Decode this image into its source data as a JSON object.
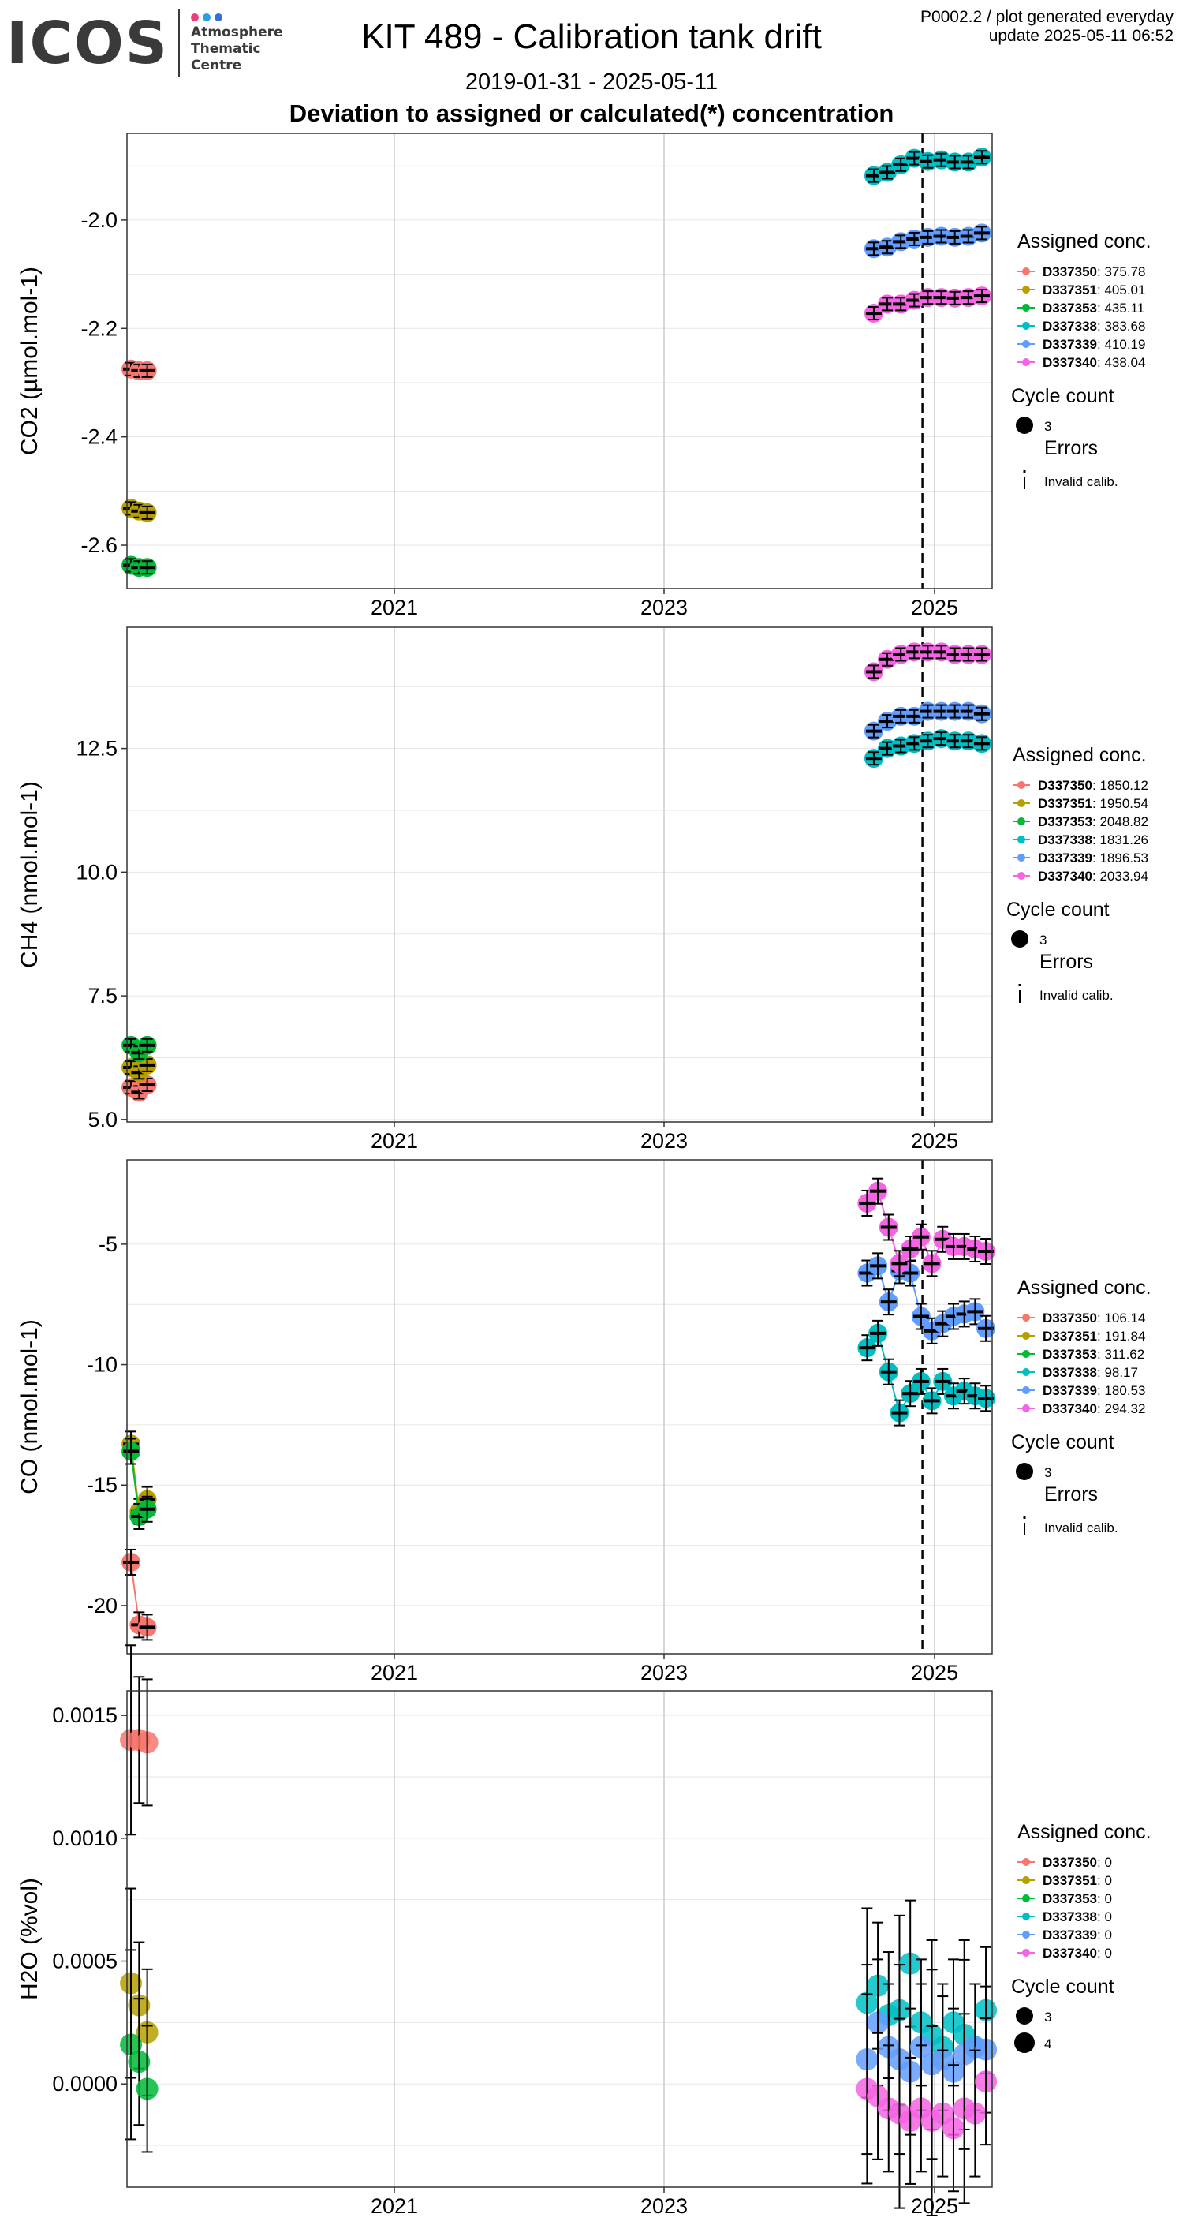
{
  "header": {
    "logo_text": "ICOS",
    "logo_lines": [
      "Atmosphere",
      "Thematic",
      "Centre"
    ],
    "logo_dot_colors": [
      "#e8407a",
      "#2b9de0",
      "#3a6fd0"
    ],
    "title": "KIT 489 - Calibration tank drift",
    "date_range": "2019-01-31 - 2025-05-11",
    "heading": "Deviation to assigned or calculated(*) concentration",
    "info_line1": "P0002.2 / plot generated everyday",
    "info_line2": "update  2025-05-11 06:52"
  },
  "colors": {
    "D337350": "#F8766D",
    "D337351": "#B79F00",
    "D337353": "#00BA38",
    "D337338": "#00BFC4",
    "D337339": "#619CFF",
    "D337340": "#F564E3",
    "cutoff_line": "#000000",
    "grid": "#e6e6e6"
  },
  "chart_data": [
    {
      "type": "scatter",
      "ylabel": "CO2 (µmol.mol-1)",
      "x_ticks": [
        "2021",
        "2023",
        "2025"
      ],
      "y_ticks": [
        "-2.0",
        "-2.2",
        "-2.4",
        "-2.6"
      ],
      "ylim": [
        -2.68,
        -1.84
      ],
      "xlim": [
        2019.0,
        2025.45
      ],
      "cutoff_x": 2024.91,
      "legend": {
        "title": "Assigned conc.",
        "entries": [
          {
            "name": "D337350",
            "value": "375.78"
          },
          {
            "name": "D337351",
            "value": "405.01"
          },
          {
            "name": "D337353",
            "value": "435.11"
          },
          {
            "name": "D337338",
            "value": "383.68"
          },
          {
            "name": "D337339",
            "value": "410.19"
          },
          {
            "name": "D337340",
            "value": "438.04"
          }
        ],
        "cycle_title": "Cycle count",
        "cycle_labels": [
          "3"
        ],
        "errors_title": "Errors",
        "errors_label": "Invalid calib."
      },
      "series": [
        {
          "name": "D337350",
          "x": [
            2019.05,
            2019.11,
            2019.17
          ],
          "y": [
            -2.275,
            -2.278,
            -2.278
          ]
        },
        {
          "name": "D337351",
          "x": [
            2019.05,
            2019.11,
            2019.17
          ],
          "y": [
            -2.532,
            -2.537,
            -2.54
          ]
        },
        {
          "name": "D337353",
          "x": [
            2019.05,
            2019.11,
            2019.17
          ],
          "y": [
            -2.637,
            -2.641,
            -2.641
          ]
        },
        {
          "name": "D337338",
          "x": [
            2024.55,
            2024.65,
            2024.75,
            2024.85,
            2024.95,
            2025.05,
            2025.15,
            2025.25,
            2025.35
          ],
          "y": [
            -1.918,
            -1.912,
            -1.898,
            -1.886,
            -1.892,
            -1.889,
            -1.893,
            -1.893,
            -1.884
          ]
        },
        {
          "name": "D337339",
          "x": [
            2024.55,
            2024.65,
            2024.75,
            2024.85,
            2024.95,
            2025.05,
            2025.15,
            2025.25,
            2025.35
          ],
          "y": [
            -2.053,
            -2.05,
            -2.04,
            -2.035,
            -2.032,
            -2.03,
            -2.032,
            -2.03,
            -2.024
          ]
        },
        {
          "name": "D337340",
          "x": [
            2024.55,
            2024.65,
            2024.75,
            2024.85,
            2024.95,
            2025.05,
            2025.15,
            2025.25,
            2025.35
          ],
          "y": [
            -2.172,
            -2.155,
            -2.155,
            -2.148,
            -2.143,
            -2.143,
            -2.144,
            -2.143,
            -2.14
          ]
        }
      ]
    },
    {
      "type": "scatter",
      "ylabel": "CH4 (nmol.mol-1)",
      "x_ticks": [
        "2021",
        "2023",
        "2025"
      ],
      "y_ticks": [
        "12.5",
        "10.0",
        "7.5",
        "5.0"
      ],
      "ylim": [
        4.95,
        14.95
      ],
      "xlim": [
        2019.0,
        2025.45
      ],
      "cutoff_x": 2024.91,
      "legend": {
        "title": "Assigned conc.",
        "entries": [
          {
            "name": "D337350",
            "value": "1850.12"
          },
          {
            "name": "D337351",
            "value": "1950.54"
          },
          {
            "name": "D337353",
            "value": "2048.82"
          },
          {
            "name": "D337338",
            "value": "1831.26"
          },
          {
            "name": "D337339",
            "value": "1896.53"
          },
          {
            "name": "D337340",
            "value": "2033.94"
          }
        ],
        "cycle_title": "Cycle count",
        "cycle_labels": [
          "3"
        ],
        "errors_title": "Errors",
        "errors_label": "Invalid calib."
      },
      "series": [
        {
          "name": "D337350",
          "x": [
            2019.05,
            2019.11,
            2019.17
          ],
          "y": [
            5.65,
            5.55,
            5.7
          ]
        },
        {
          "name": "D337351",
          "x": [
            2019.05,
            2019.11,
            2019.17
          ],
          "y": [
            6.05,
            5.95,
            6.1
          ]
        },
        {
          "name": "D337353",
          "x": [
            2019.05,
            2019.11,
            2019.17
          ],
          "y": [
            6.5,
            6.35,
            6.5
          ]
        },
        {
          "name": "D337338",
          "x": [
            2024.55,
            2024.65,
            2024.75,
            2024.85,
            2024.95,
            2025.05,
            2025.15,
            2025.25,
            2025.35
          ],
          "y": [
            12.3,
            12.5,
            12.55,
            12.6,
            12.65,
            12.7,
            12.65,
            12.65,
            12.6
          ]
        },
        {
          "name": "D337339",
          "x": [
            2024.55,
            2024.65,
            2024.75,
            2024.85,
            2024.95,
            2025.05,
            2025.15,
            2025.25,
            2025.35
          ],
          "y": [
            12.85,
            13.05,
            13.15,
            13.15,
            13.25,
            13.25,
            13.25,
            13.25,
            13.2
          ]
        },
        {
          "name": "D337340",
          "x": [
            2024.55,
            2024.65,
            2024.75,
            2024.85,
            2024.95,
            2025.05,
            2025.15,
            2025.25,
            2025.35
          ],
          "y": [
            14.05,
            14.3,
            14.4,
            14.45,
            14.45,
            14.45,
            14.4,
            14.4,
            14.4
          ]
        }
      ]
    },
    {
      "type": "scatter",
      "ylabel": "CO (nmol.mol-1)",
      "x_ticks": [
        "2021",
        "2023",
        "2025"
      ],
      "y_ticks": [
        "-5",
        "-10",
        "-15",
        "-20"
      ],
      "ylim": [
        -22.0,
        -1.5
      ],
      "xlim": [
        2019.0,
        2025.45
      ],
      "cutoff_x": 2024.91,
      "legend": {
        "title": "Assigned conc.",
        "entries": [
          {
            "name": "D337350",
            "value": "106.14"
          },
          {
            "name": "D337351",
            "value": "191.84"
          },
          {
            "name": "D337353",
            "value": "311.62"
          },
          {
            "name": "D337338",
            "value": "98.17"
          },
          {
            "name": "D337339",
            "value": "180.53"
          },
          {
            "name": "D337340",
            "value": "294.32"
          }
        ],
        "cycle_title": "Cycle count",
        "cycle_labels": [
          "3"
        ],
        "errors_title": "Errors",
        "errors_label": "Invalid calib."
      },
      "series": [
        {
          "name": "D337350",
          "x": [
            2019.05,
            2019.11,
            2019.17
          ],
          "y": [
            -18.2,
            -20.8,
            -20.9
          ]
        },
        {
          "name": "D337351",
          "x": [
            2019.05,
            2019.11,
            2019.17
          ],
          "y": [
            -13.3,
            -16.1,
            -15.6
          ]
        },
        {
          "name": "D337353",
          "x": [
            2019.05,
            2019.11,
            2019.17
          ],
          "y": [
            -13.6,
            -16.3,
            -16.0
          ]
        },
        {
          "name": "D337338",
          "x": [
            2024.5,
            2024.58,
            2024.66,
            2024.74,
            2024.82,
            2024.9,
            2024.98,
            2025.06,
            2025.14,
            2025.22,
            2025.3,
            2025.38
          ],
          "y": [
            -9.3,
            -8.7,
            -10.3,
            -12.0,
            -11.2,
            -10.7,
            -11.5,
            -10.7,
            -11.3,
            -11.1,
            -11.3,
            -11.4
          ]
        },
        {
          "name": "D337339",
          "x": [
            2024.5,
            2024.58,
            2024.66,
            2024.74,
            2024.82,
            2024.9,
            2024.98,
            2025.06,
            2025.14,
            2025.22,
            2025.3,
            2025.38
          ],
          "y": [
            -6.2,
            -5.9,
            -7.4,
            -6.1,
            -6.2,
            -8.0,
            -8.6,
            -8.3,
            -8.0,
            -7.9,
            -7.8,
            -8.5
          ]
        },
        {
          "name": "D337340",
          "x": [
            2024.5,
            2024.58,
            2024.66,
            2024.74,
            2024.82,
            2024.9,
            2024.98,
            2025.06,
            2025.14,
            2025.22,
            2025.3,
            2025.38
          ],
          "y": [
            -3.3,
            -2.8,
            -4.3,
            -5.8,
            -5.2,
            -4.7,
            -5.8,
            -4.8,
            -5.1,
            -5.1,
            -5.2,
            -5.3
          ]
        }
      ]
    },
    {
      "type": "scatter",
      "ylabel": "H2O (%vol)",
      "x_ticks": [
        "2021",
        "2023",
        "2025"
      ],
      "y_ticks": [
        "0.0015",
        "0.0010",
        "0.0005",
        "0.0000"
      ],
      "ylim": [
        -0.00042,
        0.0016
      ],
      "xlim": [
        2019.0,
        2025.45
      ],
      "legend": {
        "title": "Assigned conc.",
        "entries": [
          {
            "name": "D337350",
            "value": "0"
          },
          {
            "name": "D337351",
            "value": "0"
          },
          {
            "name": "D337353",
            "value": "0"
          },
          {
            "name": "D337338",
            "value": "0"
          },
          {
            "name": "D337339",
            "value": "0"
          },
          {
            "name": "D337340",
            "value": "0"
          }
        ],
        "cycle_title": "Cycle count",
        "cycle_labels": [
          "3",
          "4"
        ]
      },
      "series": [
        {
          "name": "D337350",
          "x": [
            2019.05,
            2019.11,
            2019.17
          ],
          "y": [
            0.0014,
            0.0014,
            0.00139
          ]
        },
        {
          "name": "D337351",
          "x": [
            2019.05,
            2019.11,
            2019.17
          ],
          "y": [
            0.00041,
            0.00032,
            0.00021
          ]
        },
        {
          "name": "D337353",
          "x": [
            2019.05,
            2019.11,
            2019.17
          ],
          "y": [
            0.00016,
            9e-05,
            -2e-05
          ]
        },
        {
          "name": "D337338",
          "x": [
            2024.5,
            2024.58,
            2024.66,
            2024.74,
            2024.82,
            2024.9,
            2024.98,
            2025.06,
            2025.14,
            2025.22,
            2025.3,
            2025.38
          ],
          "y": [
            0.00033,
            0.0004,
            0.00028,
            0.0003,
            0.00049,
            0.00025,
            0.0002,
            0.00015,
            0.00025,
            0.0002,
            0.00015,
            0.0003
          ]
        },
        {
          "name": "D337339",
          "x": [
            2024.5,
            2024.58,
            2024.66,
            2024.74,
            2024.82,
            2024.9,
            2024.98,
            2025.06,
            2025.14,
            2025.22,
            2025.3,
            2025.38
          ],
          "y": [
            0.0001,
            0.00025,
            0.00015,
            0.0001,
            5e-05,
            0.00015,
            8e-05,
            0.0001,
            5e-05,
            0.00012,
            0.00015,
            0.00014
          ]
        },
        {
          "name": "D337340",
          "x": [
            2024.5,
            2024.58,
            2024.66,
            2024.74,
            2024.82,
            2024.9,
            2024.98,
            2025.06,
            2025.14,
            2025.22,
            2025.3,
            2025.38
          ],
          "y": [
            -2e-05,
            -5e-05,
            -0.0001,
            -0.00012,
            -0.00015,
            -0.0001,
            -0.00015,
            -0.00012,
            -0.00018,
            -0.0001,
            -0.00012,
            1e-05
          ]
        }
      ]
    }
  ]
}
